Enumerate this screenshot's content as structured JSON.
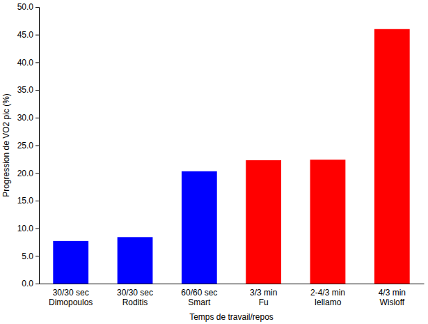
{
  "chart_data": {
    "type": "bar",
    "x_label": "Temps de travail/repos",
    "y_label": "Progression de VO2 pic (%)",
    "categories": [
      "30/30 sec\nDimopoulos",
      "30/30 sec\nRoditis",
      "60/60 sec\nSmart",
      "3/3 min\nFu",
      "2-4/3 min\nIellamo",
      "4/3 min\nWisloff"
    ],
    "values": [
      7.7,
      8.4,
      20.3,
      22.3,
      22.4,
      46.0
    ],
    "colors": [
      "#0000ff",
      "#0000ff",
      "#0000ff",
      "#ff0000",
      "#ff0000",
      "#ff0000"
    ],
    "ylim": [
      0,
      50
    ],
    "yticks": [
      {
        "value": 0,
        "label": "0.0"
      },
      {
        "value": 5,
        "label": "5.0"
      },
      {
        "value": 10,
        "label": "10.0"
      },
      {
        "value": 15,
        "label": "15.0"
      },
      {
        "value": 20,
        "label": "20.0"
      },
      {
        "value": 25,
        "label": "25.0"
      },
      {
        "value": 30,
        "label": "30.0"
      },
      {
        "value": 35,
        "label": "35.0"
      },
      {
        "value": 40,
        "label": "40.0"
      },
      {
        "value": 45,
        "label": "45.0"
      },
      {
        "value": 50,
        "label": "50.0"
      }
    ],
    "grid": false
  }
}
